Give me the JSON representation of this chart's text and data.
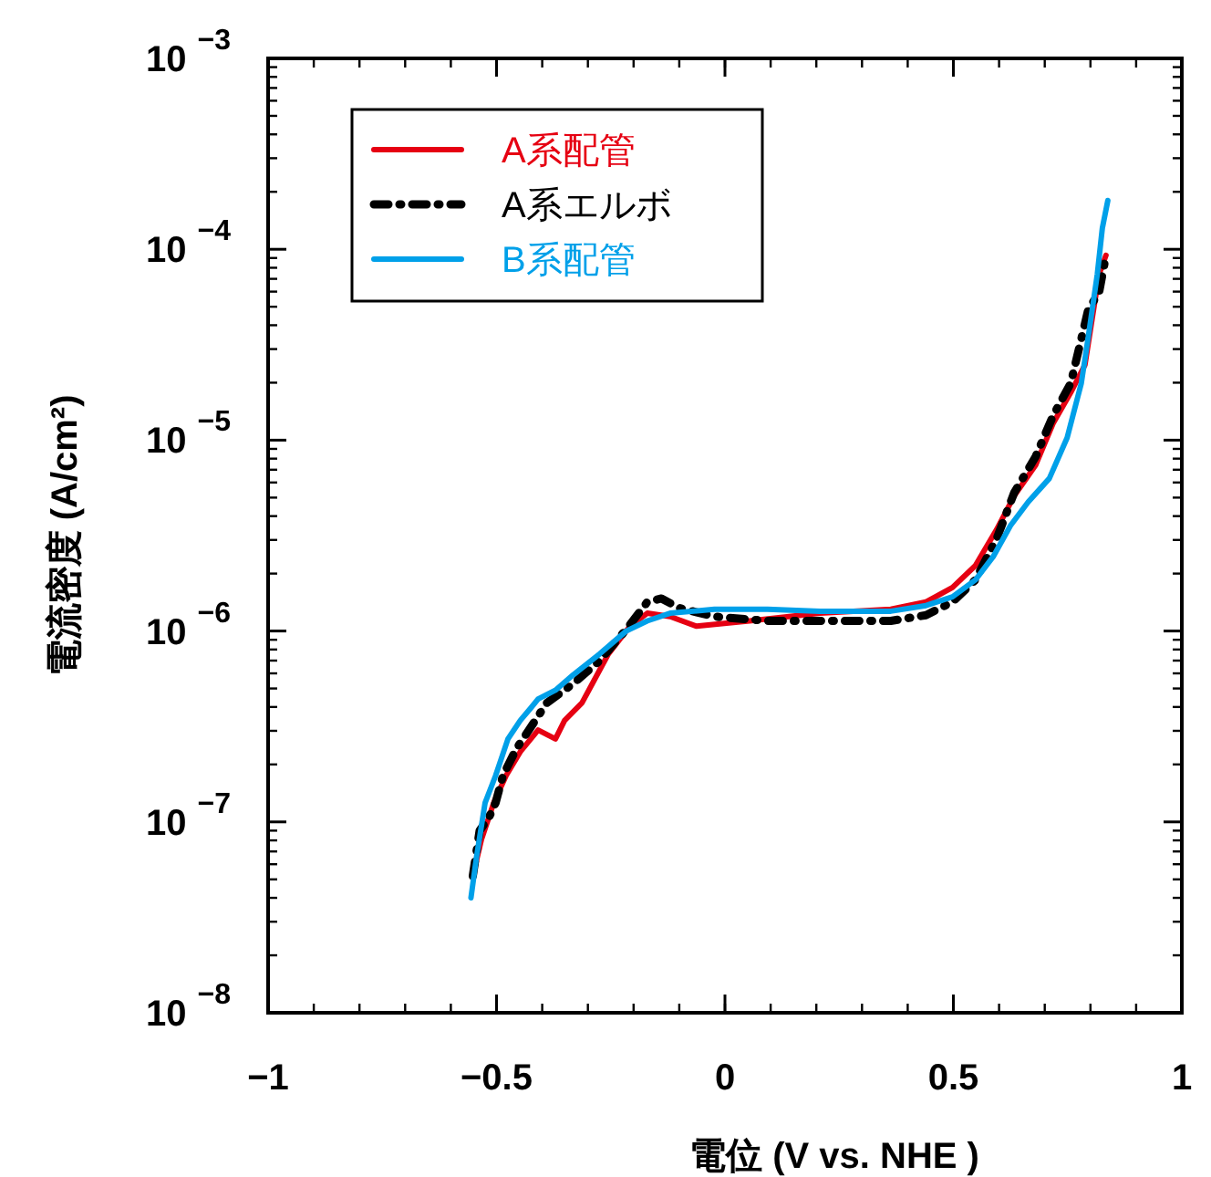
{
  "chart_data": {
    "type": "line",
    "xlabel": "電位 (V vs. NHE )",
    "ylabel": "電流密度 (A/cm²)",
    "log": "y",
    "grid": false,
    "legend": "top left",
    "marker": "none",
    "xlim": [
      -1,
      1
    ],
    "xticks": [
      -1,
      -0.5,
      0,
      0.5,
      1
    ],
    "ylim": [
      1e-08,
      0.001
    ],
    "yticks": [
      {
        "value": 1e-08,
        "label": "10$^{−8}$"
      },
      {
        "value": 1e-07,
        "label": "10$^{−7}$"
      },
      {
        "value": 1e-06,
        "label": "10$^{−6}$"
      },
      {
        "value": 1e-05,
        "label": "10$^{−5}$"
      },
      {
        "value": 0.0001,
        "label": "10$^{−4}$"
      },
      {
        "value": 0.001,
        "label": "10$^{−3}$"
      }
    ],
    "series": [
      {
        "name": "A系配管",
        "color": "#e60012",
        "line_style": "solid",
        "x": [
          -0.552,
          -0.533,
          -0.506,
          -0.479,
          -0.448,
          -0.409,
          -0.371,
          -0.351,
          -0.313,
          -0.255,
          -0.208,
          -0.17,
          -0.12,
          -0.062,
          0.054,
          0.208,
          0.363,
          0.44,
          0.498,
          0.548,
          0.595,
          0.633,
          0.68,
          0.718,
          0.757,
          0.788,
          0.819,
          0.834
        ],
        "values": [
          5.2e-08,
          8.1e-08,
          1.26e-07,
          1.75e-07,
          2.33e-07,
          3.03e-07,
          2.72e-07,
          3.4e-07,
          4.2e-07,
          7.6e-07,
          1.06e-06,
          1.24e-06,
          1.19e-06,
          1.06e-06,
          1.13e-06,
          1.24e-06,
          1.3e-06,
          1.42e-06,
          1.69e-06,
          2.2e-06,
          3.41e-06,
          5.1e-06,
          7.4e-06,
          1.22e-05,
          1.78e-05,
          2.48e-05,
          7.4e-05,
          9.3e-05
        ]
      },
      {
        "name": "A系エルボ",
        "color": "#000000",
        "line_style": "dashdot",
        "x": [
          -0.552,
          -0.537,
          -0.517,
          -0.502,
          -0.486,
          -0.456,
          -0.429,
          -0.39,
          -0.332,
          -0.274,
          -0.216,
          -0.17,
          -0.139,
          -0.1,
          -0.023,
          0.093,
          0.208,
          0.363,
          0.44,
          0.498,
          0.548,
          0.595,
          0.633,
          0.68,
          0.718,
          0.757,
          0.795,
          0.819,
          0.834
        ],
        "values": [
          5.2e-08,
          9e-08,
          1.05e-07,
          1.26e-07,
          1.75e-07,
          2.43e-07,
          3.03e-07,
          4.2e-07,
          5.3e-07,
          7e-07,
          1.02e-06,
          1.42e-06,
          1.48e-06,
          1.32e-06,
          1.19e-06,
          1.13e-06,
          1.13e-06,
          1.13e-06,
          1.21e-06,
          1.42e-06,
          1.85e-06,
          3.06e-06,
          5.3e-06,
          8.2e-06,
          1.34e-05,
          1.99e-05,
          4.8e-05,
          5.97e-05,
          9.3e-05
        ]
      },
      {
        "name": "B系配管",
        "color": "#00a0e9",
        "line_style": "solid",
        "x": [
          -0.556,
          -0.544,
          -0.525,
          -0.502,
          -0.475,
          -0.448,
          -0.425,
          -0.409,
          -0.371,
          -0.332,
          -0.274,
          -0.216,
          -0.17,
          -0.12,
          -0.023,
          0.093,
          0.208,
          0.363,
          0.44,
          0.498,
          0.548,
          0.587,
          0.625,
          0.664,
          0.71,
          0.749,
          0.78,
          0.795,
          0.815,
          0.826,
          0.838
        ],
        "values": [
          4e-08,
          6.5e-08,
          1.26e-07,
          1.75e-07,
          2.72e-07,
          3.4e-07,
          3.95e-07,
          4.4e-07,
          4.9e-07,
          5.9e-07,
          7.6e-07,
          1e-06,
          1.13e-06,
          1.24e-06,
          1.3e-06,
          1.3e-06,
          1.27e-06,
          1.27e-06,
          1.36e-06,
          1.51e-06,
          1.85e-06,
          2.45e-06,
          3.57e-06,
          4.75e-06,
          6.3e-06,
          1.03e-05,
          1.99e-05,
          3.44e-05,
          7.4e-05,
          0.000129,
          0.00018
        ]
      }
    ]
  }
}
